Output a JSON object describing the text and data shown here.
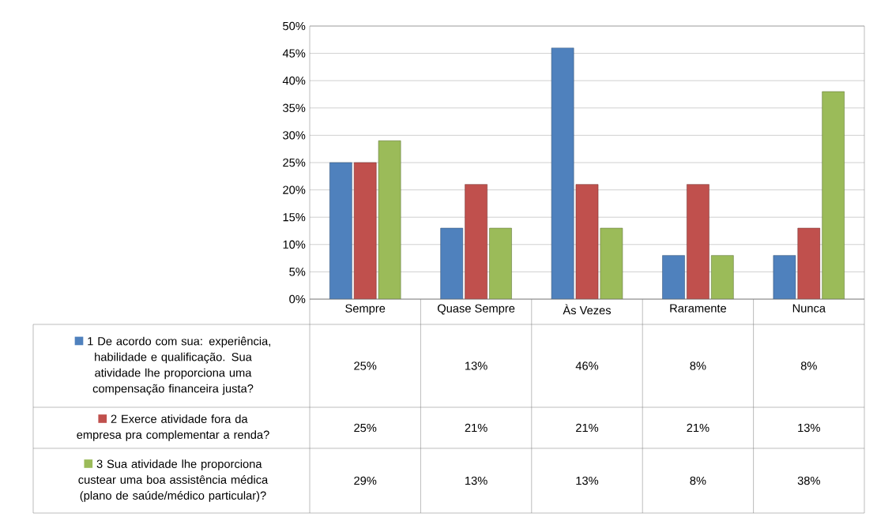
{
  "chart_data": {
    "type": "bar",
    "categories": [
      "Sempre",
      "Quase Sempre",
      "Às Vezes",
      "Raramente",
      "Nunca"
    ],
    "series": [
      {
        "name": "1 De acordo com sua: experiência, habilidade e qualificação. Sua atividade lhe proporciona uma compensação financeira justa?",
        "color": "#4f81bd",
        "values": [
          25,
          13,
          46,
          8,
          8
        ],
        "value_labels": [
          "25%",
          "13%",
          "46%",
          "8%",
          "8%"
        ]
      },
      {
        "name": "2 Exerce atividade fora da empresa pra complementar a renda?",
        "color": "#c0504d",
        "values": [
          25,
          21,
          21,
          21,
          13
        ],
        "value_labels": [
          "25%",
          "21%",
          "21%",
          "21%",
          "13%"
        ]
      },
      {
        "name": "3 Sua atividade lhe proporciona custear uma boa assistência médica (plano de saúde/médico particular)?",
        "color": "#9bbb59",
        "values": [
          29,
          13,
          13,
          8,
          38
        ],
        "value_labels": [
          "29%",
          "13%",
          "13%",
          "8%",
          "38%"
        ]
      }
    ],
    "ylim": [
      0,
      50
    ],
    "yticks": [
      {
        "value": 0,
        "label": "0%"
      },
      {
        "value": 5,
        "label": "5%"
      },
      {
        "value": 10,
        "label": "10%"
      },
      {
        "value": 15,
        "label": "15%"
      },
      {
        "value": 20,
        "label": "20%"
      },
      {
        "value": 25,
        "label": "25%"
      },
      {
        "value": 30,
        "label": "30%"
      },
      {
        "value": 35,
        "label": "35%"
      },
      {
        "value": 40,
        "label": "40%"
      },
      {
        "value": 45,
        "label": "45%"
      },
      {
        "value": 50,
        "label": "50%"
      }
    ],
    "grid": "y",
    "legend": "left"
  }
}
